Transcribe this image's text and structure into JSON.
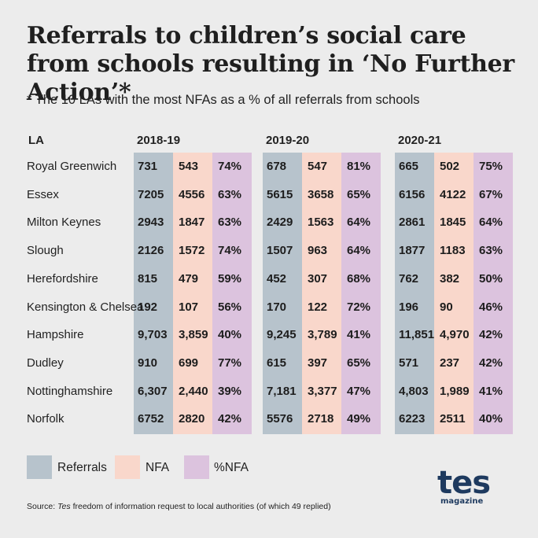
{
  "title": "Referrals to children’s social care from schools resulting in ‘No Further Action’*",
  "subtitle": "* The 10 LAs with the most NFAs as a % of all referrals from schools",
  "la_header": "LA",
  "colors": {
    "referrals": "#b7c3cc",
    "nfa": "#f9d7cb",
    "pct_nfa": "#dcc3de",
    "logo": "#1e3a5f"
  },
  "legend": [
    {
      "label": "Referrals",
      "color": "#b7c3cc"
    },
    {
      "label": "NFA",
      "color": "#f9d7cb"
    },
    {
      "label": "%NFA",
      "color": "#dcc3de"
    }
  ],
  "source": {
    "prefix": "Source: ",
    "italic": "Tes",
    "rest": " freedom of information request to local authorities (of which 49 replied)"
  },
  "logo": {
    "main": "tes",
    "sub": "magazine"
  },
  "chart_data": {
    "type": "table",
    "years": [
      "2018-19",
      "2019-20",
      "2020-21"
    ],
    "columns_per_year": [
      "Referrals",
      "NFA",
      "%NFA"
    ],
    "rows": [
      {
        "la": "Royal Greenwich",
        "values": [
          [
            "731",
            "543",
            "74%"
          ],
          [
            "678",
            "547",
            "81%"
          ],
          [
            "665",
            "502",
            "75%"
          ]
        ]
      },
      {
        "la": "Essex",
        "values": [
          [
            "7205",
            "4556",
            "63%"
          ],
          [
            "5615",
            "3658",
            "65%"
          ],
          [
            "6156",
            "4122",
            "67%"
          ]
        ]
      },
      {
        "la": "Milton Keynes",
        "values": [
          [
            "2943",
            "1847",
            "63%"
          ],
          [
            "2429",
            "1563",
            "64%"
          ],
          [
            "2861",
            "1845",
            "64%"
          ]
        ]
      },
      {
        "la": "Slough",
        "values": [
          [
            "2126",
            "1572",
            "74%"
          ],
          [
            "1507",
            "963",
            "64%"
          ],
          [
            "1877",
            "1183",
            "63%"
          ]
        ]
      },
      {
        "la": "Herefordshire",
        "values": [
          [
            "815",
            "479",
            "59%"
          ],
          [
            "452",
            "307",
            "68%"
          ],
          [
            "762",
            "382",
            "50%"
          ]
        ]
      },
      {
        "la": "Kensington & Chelsea",
        "values": [
          [
            "192",
            "107",
            "56%"
          ],
          [
            "170",
            "122",
            "72%"
          ],
          [
            "196",
            "90",
            "46%"
          ]
        ]
      },
      {
        "la": "Hampshire",
        "values": [
          [
            "9,703",
            "3,859",
            "40%"
          ],
          [
            "9,245",
            "3,789",
            "41%"
          ],
          [
            "11,851",
            "4,970",
            "42%"
          ]
        ]
      },
      {
        "la": "Dudley",
        "values": [
          [
            "910",
            "699",
            "77%"
          ],
          [
            "615",
            "397",
            "65%"
          ],
          [
            "571",
            "237",
            "42%"
          ]
        ]
      },
      {
        "la": "Nottinghamshire",
        "values": [
          [
            "6,307",
            "2,440",
            "39%"
          ],
          [
            "7,181",
            "3,377",
            "47%"
          ],
          [
            "4,803",
            "1,989",
            "41%"
          ]
        ]
      },
      {
        "la": "Norfolk",
        "values": [
          [
            "6752",
            "2820",
            "42%"
          ],
          [
            "5576",
            "2718",
            "49%"
          ],
          [
            "6223",
            "2511",
            "40%"
          ]
        ]
      }
    ]
  }
}
